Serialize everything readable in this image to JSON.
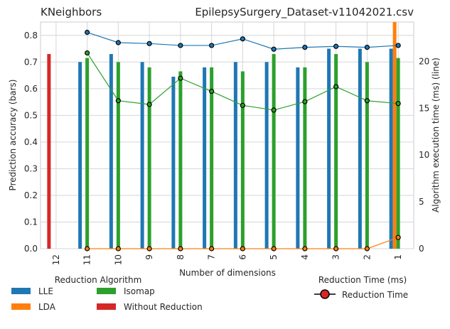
{
  "chart_data": {
    "type": "bar",
    "title_left": "KNeighbors",
    "title_right": "EpilepsySurgery_Dataset-v11042021.csv",
    "xlabel": "Number of dimensions",
    "ylabel_left": "Prediction accuracy (bars)",
    "ylabel_right": "Algorithm execution time (ms) (line)",
    "categories": [
      "12",
      "11",
      "10",
      "9",
      "8",
      "7",
      "6",
      "5",
      "4",
      "3",
      "2",
      "1"
    ],
    "ylim_left": [
      0,
      0.85
    ],
    "ylim_right": [
      0,
      24.2
    ],
    "yticks_left": [
      "0.0",
      "0.1",
      "0.2",
      "0.3",
      "0.4",
      "0.5",
      "0.6",
      "0.7",
      "0.8"
    ],
    "yticks_right": [
      "0",
      "5",
      "10",
      "15",
      "20"
    ],
    "grid": true,
    "bar_series": [
      {
        "name": "LLE",
        "color": "#1f77b4",
        "values": [
          null,
          0.7,
          0.73,
          0.7,
          0.645,
          0.68,
          0.7,
          0.7,
          0.68,
          0.75,
          0.75,
          0.75
        ]
      },
      {
        "name": "LDA",
        "color": "#ff7f0e",
        "values": [
          null,
          0,
          0,
          0,
          0,
          0,
          0,
          0,
          0,
          0,
          0,
          0.86
        ]
      },
      {
        "name": "Isomap",
        "color": "#2ca02c",
        "values": [
          null,
          0.715,
          0.7,
          0.68,
          0.665,
          0.68,
          0.665,
          0.73,
          0.68,
          0.73,
          0.7,
          0.715
        ]
      },
      {
        "name": "Without Reduction",
        "color": "#d62728",
        "values": [
          0.73,
          null,
          null,
          null,
          null,
          null,
          null,
          null,
          null,
          null,
          null,
          null
        ]
      }
    ],
    "line_series": [
      {
        "name": "LLE",
        "color": "#1f77b4",
        "values": [
          null,
          23.1,
          22.0,
          21.9,
          21.7,
          21.7,
          22.4,
          21.3,
          21.5,
          21.6,
          21.5,
          21.7
        ]
      },
      {
        "name": "LDA",
        "color": "#ff7f0e",
        "values": [
          null,
          0,
          0,
          0,
          0,
          0,
          0,
          0,
          0,
          0,
          0,
          1.2
        ]
      },
      {
        "name": "Isomap",
        "color": "#2ca02c",
        "values": [
          null,
          20.9,
          15.8,
          15.4,
          18.2,
          16.8,
          15.3,
          14.8,
          15.7,
          17.3,
          15.8,
          15.5
        ]
      }
    ],
    "legend_bars": {
      "title": "Reduction Algorithm",
      "entries": [
        {
          "label": "LLE",
          "color": "#1f77b4"
        },
        {
          "label": "Isomap",
          "color": "#2ca02c"
        },
        {
          "label": "LDA",
          "color": "#ff7f0e"
        },
        {
          "label": "Without Reduction",
          "color": "#d62728"
        }
      ]
    },
    "legend_line": {
      "title": "Reduction Time (ms)",
      "entries": [
        {
          "label": "Reduction Time",
          "color": "#d62728"
        }
      ]
    }
  }
}
